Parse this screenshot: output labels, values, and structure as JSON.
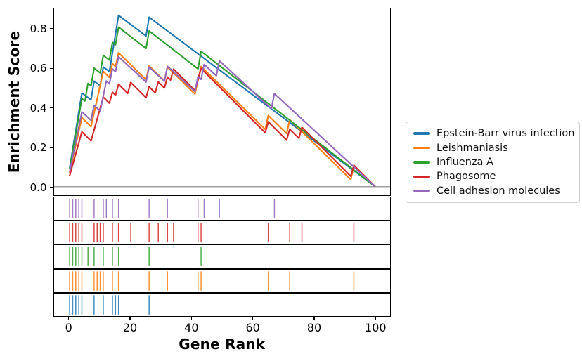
{
  "chart_data": {
    "type": "line",
    "title": "",
    "xlabel": "Gene Rank",
    "ylabel": "Enrichment Score",
    "xticks": [
      0,
      20,
      40,
      60,
      80,
      100
    ],
    "yticks": [
      0.0,
      0.2,
      0.4,
      0.6,
      0.8
    ],
    "xlim": [
      -5,
      105
    ],
    "ylim": [
      -0.043,
      0.911
    ],
    "n_ranks": 101,
    "grid": false,
    "zero_line": true,
    "zero_line_color": "#808080",
    "legend_position": "right-outside",
    "note": "Running enrichment score curves; each series has hit ranks shown as vertical ticks in the panels below the main axes. Curves rise at hit ranks, decline between hits, peak near rank 16, and return to 0 at rank 100.",
    "series": [
      {
        "name": "Epstein-Barr virus infection",
        "color": "#1f77b4",
        "peak_es": 0.87,
        "peak_rank": 16,
        "hits": [
          0,
          1,
          2,
          3,
          4,
          8,
          11,
          14,
          15,
          16,
          26
        ]
      },
      {
        "name": "Leishmaniasis",
        "color": "#ff7f0e",
        "peak_es": 0.68,
        "peak_rank": 16,
        "hits": [
          0,
          1,
          2,
          3,
          4,
          8,
          9,
          10,
          11,
          14,
          16,
          26,
          32,
          42,
          43,
          65,
          72,
          93
        ]
      },
      {
        "name": "Influenza A",
        "color": "#2ca02c",
        "peak_es": 0.81,
        "peak_rank": 16,
        "hits": [
          0,
          1,
          2,
          3,
          4,
          6,
          8,
          11,
          14,
          16,
          26,
          43
        ]
      },
      {
        "name": "Phagosome",
        "color": "#d62728",
        "peak_es": 0.6,
        "peak_rank": 43,
        "hits": [
          0,
          1,
          2,
          3,
          4,
          8,
          9,
          10,
          11,
          14,
          16,
          20,
          26,
          29,
          32,
          34,
          42,
          43,
          65,
          72,
          76,
          93
        ]
      },
      {
        "name": "Cell adhesion molecules",
        "color": "#9467bd",
        "peak_es": 0.66,
        "peak_rank": 16,
        "hits": [
          0,
          1,
          2,
          3,
          4,
          8,
          11,
          12,
          14,
          16,
          26,
          32,
          42,
          44,
          49,
          67
        ]
      }
    ],
    "panel_order_top_to_bottom": [
      "Cell adhesion molecules",
      "Phagosome",
      "Influenza A",
      "Leishmaniasis",
      "Epstein-Barr virus infection"
    ]
  }
}
